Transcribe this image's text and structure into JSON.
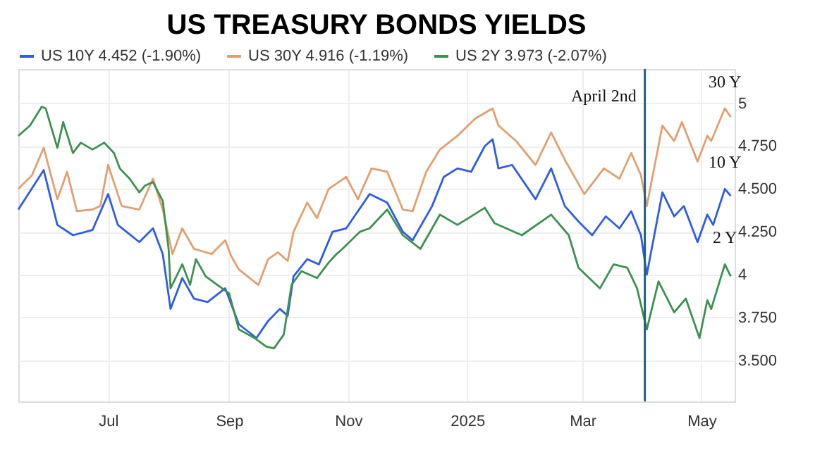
{
  "chart_data": {
    "type": "line",
    "title": "US TREASURY BONDS YIELDS",
    "series": [
      {
        "name": "US 10Y 4.452 (-1.90%)",
        "color": "#2e5ce6",
        "x": [
          "2024-05-16",
          "2024-05-29",
          "2024-06-05",
          "2024-06-13",
          "2024-06-23",
          "2024-07-01",
          "2024-07-06",
          "2024-07-17",
          "2024-07-24",
          "2024-07-29",
          "2024-08-02",
          "2024-08-08",
          "2024-08-14",
          "2024-08-21",
          "2024-08-30",
          "2024-09-06",
          "2024-09-15",
          "2024-09-21",
          "2024-09-27",
          "2024-10-01",
          "2024-10-04",
          "2024-10-11",
          "2024-10-17",
          "2024-10-24",
          "2024-10-31",
          "2024-11-12",
          "2024-11-21",
          "2024-11-29",
          "2024-12-04",
          "2024-12-14",
          "2024-12-20",
          "2024-12-27",
          "2025-01-03",
          "2025-01-10",
          "2025-01-14",
          "2025-01-17",
          "2025-01-24",
          "2025-02-05",
          "2025-02-13",
          "2025-02-20",
          "2025-02-27",
          "2025-03-06",
          "2025-03-13",
          "2025-03-20",
          "2025-03-26",
          "2025-03-31",
          "2025-04-03",
          "2025-04-11",
          "2025-04-17",
          "2025-04-22",
          "2025-04-29",
          "2025-05-04",
          "2025-05-07",
          "2025-05-13",
          "2025-05-16"
        ],
        "values": [
          4.38,
          4.61,
          4.29,
          4.23,
          4.26,
          4.47,
          4.29,
          4.19,
          4.27,
          4.12,
          3.8,
          3.98,
          3.86,
          3.84,
          3.92,
          3.71,
          3.63,
          3.73,
          3.8,
          3.76,
          3.99,
          4.09,
          4.06,
          4.25,
          4.27,
          4.47,
          4.42,
          4.25,
          4.2,
          4.4,
          4.57,
          4.62,
          4.6,
          4.75,
          4.79,
          4.62,
          4.64,
          4.44,
          4.62,
          4.4,
          4.31,
          4.23,
          4.34,
          4.27,
          4.37,
          4.23,
          4.0,
          4.48,
          4.34,
          4.4,
          4.19,
          4.35,
          4.29,
          4.5,
          4.46
        ]
      },
      {
        "name": "US 30Y 4.916 (-1.19%)",
        "color": "#e0a070",
        "x": [
          "2024-05-16",
          "2024-05-23",
          "2024-05-29",
          "2024-06-05",
          "2024-06-10",
          "2024-06-15",
          "2024-06-23",
          "2024-06-27",
          "2024-07-01",
          "2024-07-08",
          "2024-07-17",
          "2024-07-24",
          "2024-07-29",
          "2024-08-03",
          "2024-08-08",
          "2024-08-14",
          "2024-08-23",
          "2024-08-30",
          "2024-09-02",
          "2024-09-06",
          "2024-09-16",
          "2024-09-21",
          "2024-09-26",
          "2024-10-01",
          "2024-10-04",
          "2024-10-11",
          "2024-10-16",
          "2024-10-22",
          "2024-10-31",
          "2024-11-06",
          "2024-11-13",
          "2024-11-21",
          "2024-11-29",
          "2024-12-04",
          "2024-12-11",
          "2024-12-18",
          "2024-12-27",
          "2025-01-05",
          "2025-01-14",
          "2025-01-17",
          "2025-01-26",
          "2025-02-05",
          "2025-02-13",
          "2025-02-20",
          "2025-03-02",
          "2025-03-12",
          "2025-03-20",
          "2025-03-26",
          "2025-03-31",
          "2025-04-03",
          "2025-04-11",
          "2025-04-17",
          "2025-04-21",
          "2025-04-29",
          "2025-05-04",
          "2025-05-06",
          "2025-05-13",
          "2025-05-16"
        ],
        "values": [
          4.5,
          4.58,
          4.74,
          4.44,
          4.6,
          4.37,
          4.38,
          4.4,
          4.64,
          4.4,
          4.38,
          4.56,
          4.38,
          4.12,
          4.27,
          4.15,
          4.12,
          4.2,
          4.11,
          4.03,
          3.94,
          4.09,
          4.13,
          4.08,
          4.25,
          4.42,
          4.33,
          4.5,
          4.57,
          4.44,
          4.62,
          4.6,
          4.38,
          4.37,
          4.6,
          4.73,
          4.81,
          4.91,
          4.97,
          4.87,
          4.78,
          4.64,
          4.83,
          4.67,
          4.47,
          4.62,
          4.56,
          4.71,
          4.58,
          4.4,
          4.87,
          4.78,
          4.89,
          4.66,
          4.81,
          4.78,
          4.97,
          4.92
        ]
      },
      {
        "name": "US 2Y 3.973 (-2.07%)",
        "color": "#3d9150",
        "x": [
          "2024-05-16",
          "2024-05-22",
          "2024-05-28",
          "2024-05-30",
          "2024-06-05",
          "2024-06-08",
          "2024-06-13",
          "2024-06-17",
          "2024-06-23",
          "2024-06-29",
          "2024-07-04",
          "2024-07-07",
          "2024-07-12",
          "2024-07-17",
          "2024-07-20",
          "2024-07-24",
          "2024-07-29",
          "2024-08-01",
          "2024-08-02",
          "2024-08-08",
          "2024-08-12",
          "2024-08-15",
          "2024-08-20",
          "2024-08-26",
          "2024-09-01",
          "2024-09-06",
          "2024-09-14",
          "2024-09-20",
          "2024-09-24",
          "2024-09-29",
          "2024-10-03",
          "2024-10-08",
          "2024-10-16",
          "2024-10-22",
          "2024-10-26",
          "2024-10-29",
          "2024-11-07",
          "2024-11-12",
          "2024-11-21",
          "2024-11-29",
          "2024-12-08",
          "2024-12-18",
          "2024-12-27",
          "2025-01-10",
          "2025-01-15",
          "2025-01-29",
          "2025-02-13",
          "2025-02-22",
          "2025-02-27",
          "2025-03-10",
          "2025-03-17",
          "2025-03-24",
          "2025-03-29",
          "2025-04-03",
          "2025-04-09",
          "2025-04-17",
          "2025-04-23",
          "2025-04-30",
          "2025-05-04",
          "2025-05-06",
          "2025-05-13",
          "2025-05-16"
        ],
        "values": [
          4.81,
          4.87,
          4.98,
          4.97,
          4.74,
          4.89,
          4.71,
          4.77,
          4.73,
          4.77,
          4.71,
          4.62,
          4.56,
          4.48,
          4.52,
          4.54,
          4.43,
          4.15,
          3.92,
          4.06,
          3.94,
          4.09,
          3.99,
          3.94,
          3.89,
          3.68,
          3.63,
          3.58,
          3.57,
          3.65,
          3.94,
          4.02,
          3.98,
          4.07,
          4.12,
          4.15,
          4.25,
          4.27,
          4.38,
          4.23,
          4.15,
          4.35,
          4.29,
          4.39,
          4.3,
          4.23,
          4.35,
          4.23,
          4.04,
          3.92,
          4.06,
          4.04,
          3.92,
          3.68,
          3.96,
          3.78,
          3.86,
          3.63,
          3.85,
          3.8,
          4.06,
          3.99
        ]
      }
    ],
    "xlim": [
      "2024-05-16",
      "2025-05-18"
    ],
    "xticks": [
      {
        "value": "2024-07-01",
        "label": "Jul"
      },
      {
        "value": "2024-09-01",
        "label": "Sep"
      },
      {
        "value": "2024-11-01",
        "label": "Nov"
      },
      {
        "value": "2025-01-01",
        "label": "2025"
      },
      {
        "value": "2025-03-01",
        "label": "Mar"
      },
      {
        "value": "2025-05-01",
        "label": "May"
      }
    ],
    "ylim": [
      3.26,
      5.2
    ],
    "yticks": [
      {
        "value": 3.5,
        "label": "3.500"
      },
      {
        "value": 3.75,
        "label": "3.750"
      },
      4,
      {
        "value": 4.25,
        "label": "4.250"
      },
      {
        "value": 4.5,
        "label": "4.500"
      },
      {
        "value": 4.75,
        "label": "4.750"
      },
      5
    ],
    "ref_lines": [
      {
        "axis": "x",
        "value": "2025-04-02",
        "label": "April 2nd",
        "color": "#1f5f7a",
        "line_style": "solid"
      }
    ],
    "annotations": [
      {
        "text": "30 Y",
        "x": "2025-05-13",
        "y": 4.97
      },
      {
        "text": "10 Y",
        "x": "2025-05-13",
        "y": 4.5
      },
      {
        "text": "2 Y",
        "x": "2025-05-13",
        "y": 4.06
      }
    ],
    "grid": true,
    "legend": "top left",
    "marker": "none",
    "line_style": "solid"
  }
}
